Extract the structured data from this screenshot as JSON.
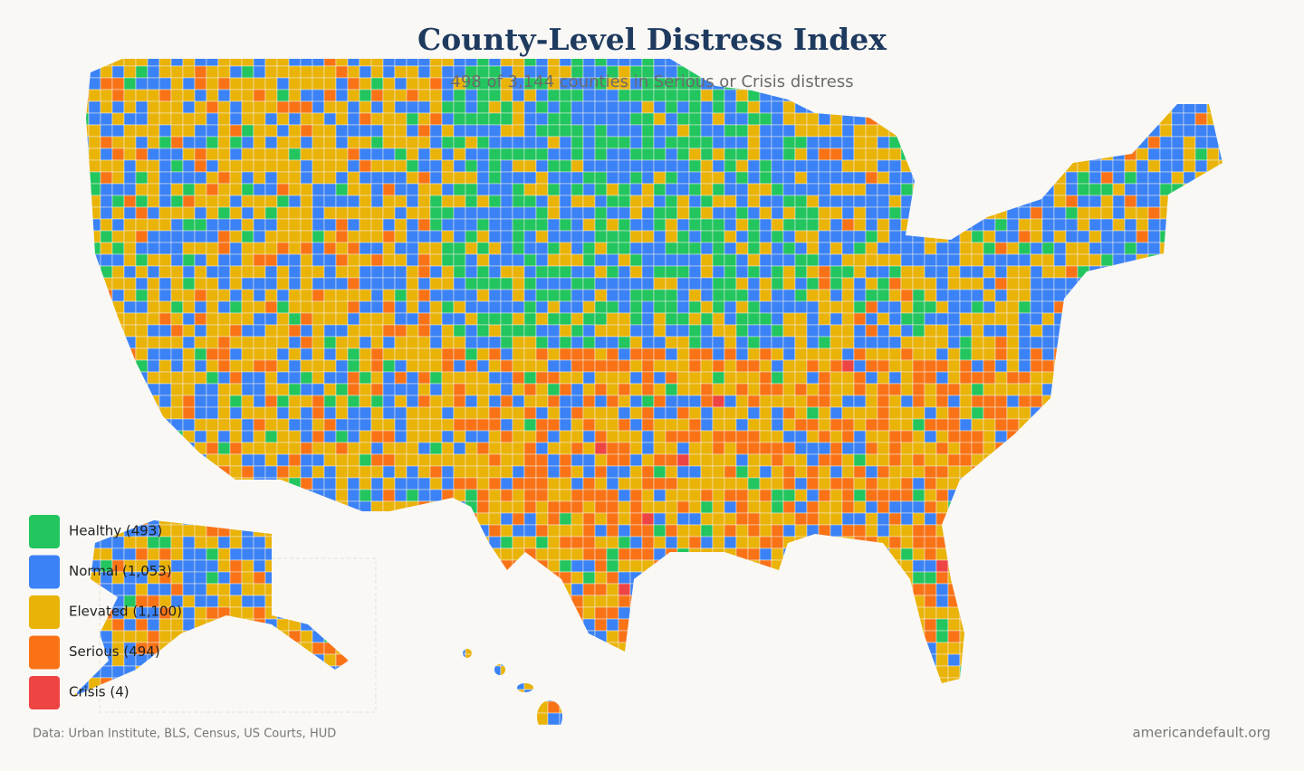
{
  "header": {
    "title": "County-Level Distress Index",
    "subtitle": "498 of 3,144 counties in Serious or Crisis distress"
  },
  "legend": {
    "items": [
      {
        "label": "Healthy (493)",
        "color": "#22c55e"
      },
      {
        "label": "Normal (1,053)",
        "color": "#3b82f6"
      },
      {
        "label": "Elevated (1,100)",
        "color": "#eab308"
      },
      {
        "label": "Serious (494)",
        "color": "#f97316"
      },
      {
        "label": "Crisis (4)",
        "color": "#ef4444"
      }
    ]
  },
  "footer": {
    "source": "Data: Urban Institute, BLS, Census, US Courts, HUD",
    "site": "americandefault.org"
  }
}
